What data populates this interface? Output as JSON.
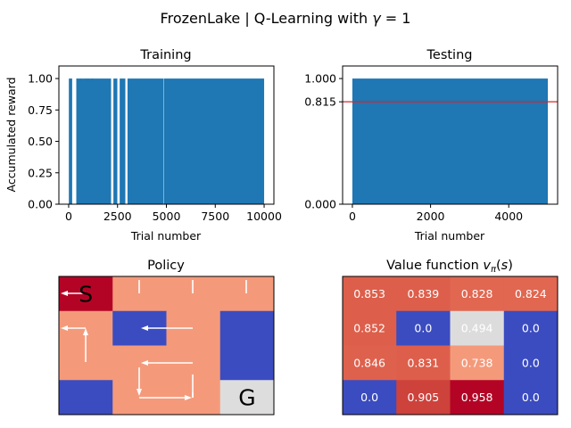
{
  "figure": {
    "suptitle": "FrozenLake | Q-Learning with γ = 1"
  },
  "chart_data": [
    {
      "type": "bar",
      "title": "Training",
      "xlabel": "Trial number",
      "ylabel": "Accumulated reward",
      "xlim": [
        -500,
        10500
      ],
      "ylim": [
        0,
        1.1
      ],
      "xticks": [
        0,
        2500,
        5000,
        7500,
        10000
      ],
      "yticks": [
        0.0,
        0.25,
        0.5,
        0.75,
        1.0
      ],
      "xtick_labels": [
        "0",
        "2500",
        "5000",
        "7500",
        "10000"
      ],
      "ytick_labels": [
        "0.00",
        "0.25",
        "0.50",
        "0.75",
        "1.00"
      ],
      "color": "#1f77b4",
      "n_trials": 10000,
      "success_reward": 1.0,
      "success_intervals": [
        [
          10,
          180
        ],
        [
          390,
          2170
        ],
        [
          2290,
          2490
        ],
        [
          2610,
          2900
        ],
        [
          3010,
          4840
        ],
        [
          4860,
          10000
        ]
      ],
      "isolated_successes": [
        430,
        600,
        880,
        960,
        1040,
        1160,
        1210
      ]
    },
    {
      "type": "bar",
      "title": "Testing",
      "xlabel": "Trial number",
      "ylabel": "",
      "xlim": [
        -250,
        5250
      ],
      "ylim": [
        0,
        1.1
      ],
      "xticks": [
        0,
        2000,
        4000
      ],
      "xtick_labels": [
        "0",
        "2000",
        "4000"
      ],
      "ytick_labels": [
        "0.000",
        "0.815",
        "1.000"
      ],
      "yticks": [
        0.0,
        0.815,
        1.0
      ],
      "color": "#1f77b4",
      "n_trials": 5000,
      "success_reward": 1.0,
      "mean_reward": 0.815,
      "mean_line_color": "#d62728"
    },
    {
      "type": "heatmap",
      "title": "Policy",
      "rows": 4,
      "cols": 4,
      "cell_colors": [
        [
          "#b40426",
          "#f49a7b",
          "#f49a7b",
          "#f49a7b"
        ],
        [
          "#f49a7b",
          "#3b4cc0",
          "#f49a7b",
          "#3b4cc0"
        ],
        [
          "#f49a7b",
          "#f49a7b",
          "#f49a7b",
          "#3b4cc0"
        ],
        [
          "#3b4cc0",
          "#f49a7b",
          "#f49a7b",
          "#dddddd"
        ]
      ],
      "labels": [
        {
          "row": 0,
          "col": 0,
          "text": "S"
        },
        {
          "row": 3,
          "col": 3,
          "text": "G"
        }
      ],
      "path_color": "#ffffff"
    },
    {
      "type": "heatmap",
      "title": "Value function vπ(s)",
      "rows": 4,
      "cols": 4,
      "values": [
        [
          "0.853",
          "0.839",
          "0.828",
          "0.824"
        ],
        [
          "0.852",
          "0.0",
          "0.494",
          "0.0"
        ],
        [
          "0.846",
          "0.831",
          "0.738",
          "0.0"
        ],
        [
          "0.0",
          "0.905",
          "0.958",
          "0.0"
        ]
      ],
      "cell_colors": [
        [
          "#dd5f4b",
          "#dd5f4b",
          "#e16751",
          "#e16751"
        ],
        [
          "#dd5f4b",
          "#3b4cc0",
          "#dddcdc",
          "#3b4cc0"
        ],
        [
          "#de614d",
          "#dd5f4b",
          "#f49a7b",
          "#3b4cc0"
        ],
        [
          "#3b4cc0",
          "#cd423b",
          "#b40426",
          "#3b4cc0"
        ]
      ]
    }
  ]
}
